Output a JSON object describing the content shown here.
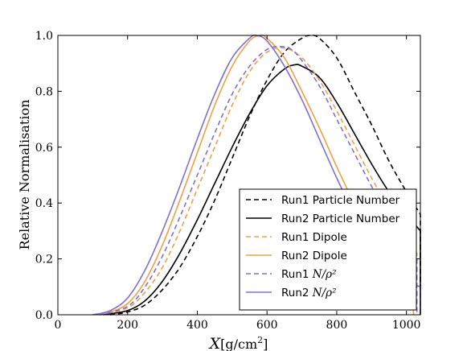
{
  "chart_data": {
    "type": "line",
    "title": "",
    "xlabel_var": "X",
    "xlabel_unit": "[g/cm",
    "xlabel_exp": "2",
    "xlabel_close": "]",
    "ylabel": "Relative Normalisation",
    "xlim": [
      0,
      1040
    ],
    "ylim": [
      0,
      1.0
    ],
    "xticks": [
      0,
      200,
      400,
      600,
      800,
      1000
    ],
    "yticks": [
      0.0,
      0.2,
      0.4,
      0.6,
      0.8,
      1.0
    ],
    "xtick_labels": [
      "0",
      "200",
      "400",
      "600",
      "800",
      "1000"
    ],
    "ytick_labels": [
      "0.0",
      "0.2",
      "0.4",
      "0.6",
      "0.8",
      "1.0"
    ],
    "legend_position": "lower-right",
    "series": [
      {
        "name": "Run1 Particle Number",
        "label_main": "Run1 Particle Number",
        "label_italic": "",
        "color": "#000000",
        "dash": true,
        "x": [
          150,
          200,
          250,
          300,
          350,
          400,
          450,
          500,
          550,
          600,
          650,
          700,
          725,
          750,
          800,
          850,
          900,
          950,
          1000,
          1040
        ],
        "y": [
          0.0,
          0.01,
          0.035,
          0.09,
          0.17,
          0.28,
          0.41,
          0.56,
          0.71,
          0.84,
          0.94,
          0.99,
          1.0,
          0.99,
          0.92,
          0.8,
          0.68,
          0.55,
          0.44,
          0.36
        ]
      },
      {
        "name": "Run2 Particle Number",
        "label_main": "Run2 Particle Number",
        "label_italic": "",
        "color": "#000000",
        "dash": false,
        "x": [
          130,
          200,
          250,
          300,
          350,
          400,
          450,
          500,
          550,
          600,
          650,
          680,
          700,
          750,
          800,
          850,
          900,
          950,
          1000,
          1040
        ],
        "y": [
          0.0,
          0.015,
          0.05,
          0.12,
          0.22,
          0.34,
          0.47,
          0.6,
          0.72,
          0.82,
          0.88,
          0.895,
          0.89,
          0.85,
          0.76,
          0.65,
          0.54,
          0.44,
          0.36,
          0.3
        ]
      },
      {
        "name": "Run1 Dipole",
        "label_main": "Run1 Dipole",
        "label_italic": "",
        "color": "#f0a040",
        "dash": true,
        "x": [
          120,
          200,
          250,
          300,
          350,
          400,
          450,
          500,
          550,
          600,
          650,
          700,
          750,
          800,
          850,
          900,
          950,
          1000,
          1030
        ],
        "y": [
          0.0,
          0.025,
          0.08,
          0.17,
          0.3,
          0.45,
          0.6,
          0.75,
          0.87,
          0.94,
          0.955,
          0.92,
          0.84,
          0.73,
          0.61,
          0.49,
          0.38,
          0.28,
          0.22
        ]
      },
      {
        "name": "Run2 Dipole",
        "label_main": "Run2 Dipole",
        "label_italic": "",
        "color": "#f0a040",
        "dash": false,
        "x": [
          110,
          150,
          200,
          250,
          300,
          350,
          400,
          450,
          500,
          550,
          580,
          600,
          650,
          700,
          750,
          800,
          850,
          900,
          950,
          1000,
          1020
        ],
        "y": [
          0.0,
          0.01,
          0.04,
          0.12,
          0.25,
          0.41,
          0.58,
          0.75,
          0.89,
          0.98,
          1.0,
          0.99,
          0.92,
          0.8,
          0.67,
          0.53,
          0.4,
          0.29,
          0.2,
          0.14,
          0.12
        ]
      },
      {
        "name": "Run1 N/ρ²",
        "label_main": "Run1 ",
        "label_italic": "N/ρ²",
        "color": "#8070d0",
        "dash": true,
        "x": [
          120,
          200,
          250,
          300,
          350,
          400,
          450,
          500,
          550,
          600,
          640,
          670,
          700,
          750,
          800,
          850,
          900,
          950,
          1000,
          1030
        ],
        "y": [
          0.0,
          0.03,
          0.1,
          0.21,
          0.35,
          0.5,
          0.65,
          0.79,
          0.89,
          0.95,
          0.96,
          0.95,
          0.91,
          0.82,
          0.7,
          0.58,
          0.46,
          0.35,
          0.26,
          0.21
        ]
      },
      {
        "name": "Run2 N/ρ²",
        "label_main": "Run2 ",
        "label_italic": "N/ρ²",
        "color": "#8070d0",
        "dash": false,
        "x": [
          100,
          150,
          200,
          250,
          300,
          350,
          400,
          450,
          500,
          550,
          570,
          600,
          650,
          700,
          750,
          800,
          850,
          900,
          950,
          1000,
          1040
        ],
        "y": [
          0.0,
          0.015,
          0.06,
          0.16,
          0.3,
          0.46,
          0.63,
          0.79,
          0.92,
          0.99,
          1.0,
          0.98,
          0.89,
          0.77,
          0.63,
          0.49,
          0.36,
          0.25,
          0.17,
          0.12,
          0.1
        ]
      }
    ]
  }
}
